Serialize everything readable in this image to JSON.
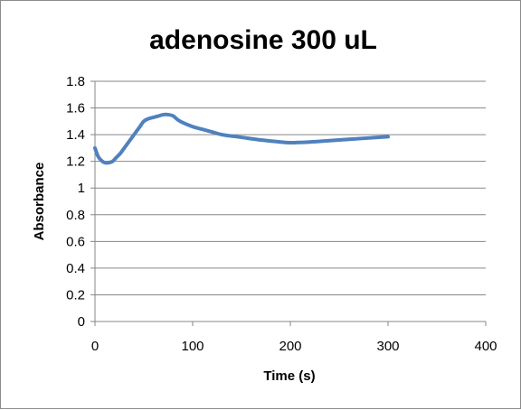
{
  "chart_data": {
    "type": "line",
    "title": "adenosine 300 uL",
    "xlabel": "Time (s)",
    "ylabel": "Absorbance",
    "xlim": [
      0,
      400
    ],
    "ylim": [
      0,
      1.8
    ],
    "xticks": [
      "0",
      "100",
      "200",
      "300",
      "400"
    ],
    "yticks": [
      "0",
      "0.2",
      "0.4",
      "0.6",
      "0.8",
      "1",
      "1.2",
      "1.4",
      "1.6",
      "1.8"
    ],
    "grid": "horizontal",
    "legend": "none",
    "series": [
      {
        "color": "#4f81bd",
        "x": [
          0,
          3,
          6,
          10,
          14,
          18,
          22,
          26,
          30,
          35,
          40,
          45,
          50,
          55,
          60,
          65,
          70,
          75,
          80,
          85,
          90,
          100,
          110,
          120,
          130,
          150,
          170,
          190,
          200,
          220,
          240,
          260,
          280,
          300
        ],
        "y": [
          1.3,
          1.24,
          1.21,
          1.19,
          1.19,
          1.2,
          1.23,
          1.26,
          1.3,
          1.35,
          1.4,
          1.45,
          1.5,
          1.52,
          1.53,
          1.54,
          1.55,
          1.55,
          1.54,
          1.51,
          1.49,
          1.46,
          1.44,
          1.42,
          1.4,
          1.38,
          1.36,
          1.345,
          1.34,
          1.345,
          1.355,
          1.365,
          1.375,
          1.385
        ]
      }
    ]
  }
}
